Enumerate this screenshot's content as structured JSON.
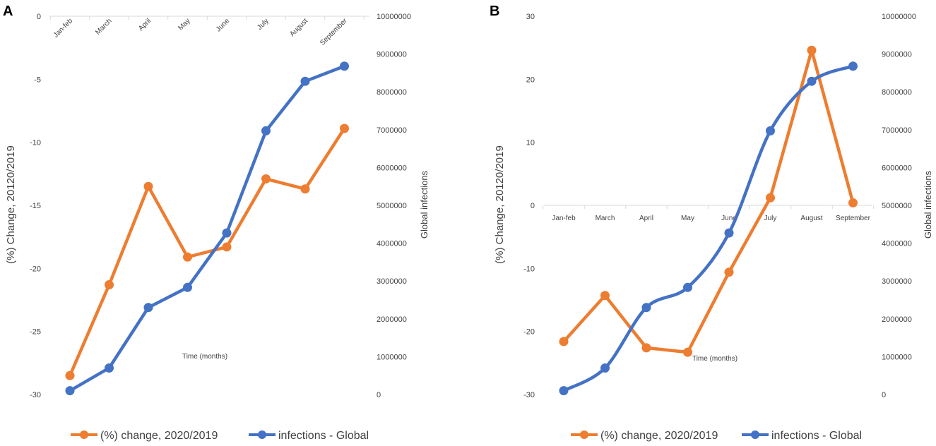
{
  "colors": {
    "orange": "#ED7D31",
    "blue": "#4472C4",
    "text": "#404040"
  },
  "chart_data": [
    {
      "panel": "A",
      "type": "line",
      "categories": [
        "Jan-feb",
        "March",
        "April",
        "May",
        "June",
        "July",
        "August",
        "September"
      ],
      "ylabel": "(%) Change, 20120/2019",
      "y2label": "Global infections",
      "xlabel": "Time (months)",
      "ylim": [
        -30,
        0
      ],
      "yticks": [
        0,
        -5,
        -10,
        -15,
        -20,
        -25,
        -30
      ],
      "y2lim": [
        0,
        10000000
      ],
      "y2ticks": [
        10000000,
        9000000,
        8000000,
        7000000,
        6000000,
        5000000,
        4000000,
        3000000,
        2000000,
        1000000,
        0
      ],
      "series": [
        {
          "name": "(%) change, 2020/2019",
          "axis": "left",
          "color": "orange",
          "smooth": false,
          "values": [
            -28.5,
            -21.3,
            -13.5,
            -19.1,
            -18.3,
            -12.9,
            -13.7,
            -8.9
          ]
        },
        {
          "name": "infections - Global",
          "axis": "right",
          "color": "blue",
          "smooth": false,
          "values": [
            100000,
            700000,
            2300000,
            2830000,
            4270000,
            6970000,
            8280000,
            8680000
          ]
        }
      ],
      "legend": [
        "(%) change, 2020/2019",
        "infections - Global"
      ]
    },
    {
      "panel": "B",
      "type": "line",
      "categories": [
        "Jan-feb",
        "March",
        "April",
        "May",
        "June",
        "July",
        "August",
        "September"
      ],
      "ylabel": "(%) Change, 20120/2019",
      "y2label": "Global infections",
      "xlabel": "Time (months)",
      "ylim": [
        -30,
        30
      ],
      "yticks": [
        30,
        20,
        10,
        0,
        -10,
        -20,
        -30
      ],
      "y2lim": [
        0,
        10000000
      ],
      "y2ticks": [
        10000000,
        9000000,
        8000000,
        7000000,
        6000000,
        5000000,
        4000000,
        3000000,
        2000000,
        1000000,
        0
      ],
      "series": [
        {
          "name": "(%) change, 2020/2019",
          "axis": "left",
          "color": "orange",
          "smooth": false,
          "values": [
            -21.6,
            -14.3,
            -22.6,
            -23.3,
            -10.6,
            1.2,
            24.6,
            0.4
          ]
        },
        {
          "name": "infections - Global",
          "axis": "right",
          "color": "blue",
          "smooth": true,
          "values": [
            100000,
            700000,
            2300000,
            2830000,
            4270000,
            6970000,
            8280000,
            8680000
          ]
        }
      ],
      "legend": [
        "(%) change, 2020/2019",
        "infections - Global"
      ]
    }
  ]
}
